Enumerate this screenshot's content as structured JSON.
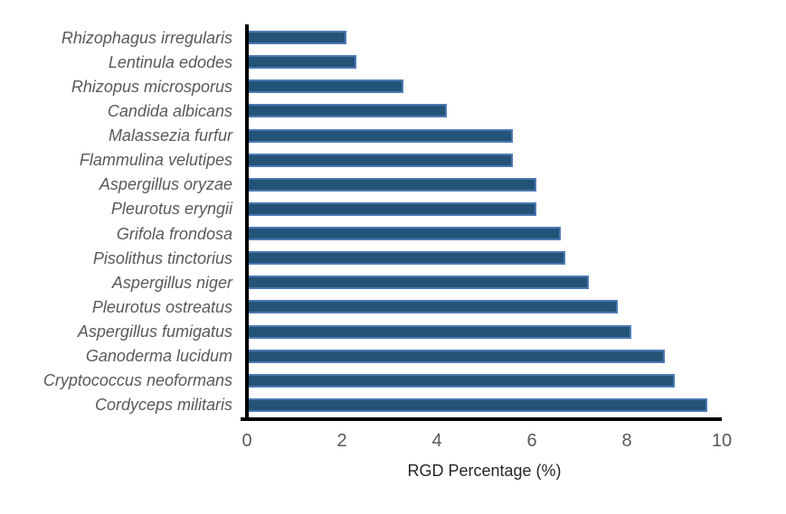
{
  "chart_data": {
    "type": "bar",
    "orientation": "horizontal",
    "title": "",
    "xlabel": "RGD Percentage (%)",
    "ylabel": "",
    "xlim": [
      0,
      10
    ],
    "xticks": [
      "0",
      "2",
      "4",
      "6",
      "8",
      "10"
    ],
    "grid": false,
    "legend": "none",
    "categories": [
      "Rhizophagus irregularis",
      "Lentinula edodes",
      "Rhizopus microsporus",
      "Candida albicans",
      "Malassezia furfur",
      "Flammulina velutipes",
      "Aspergillus oryzae",
      "Pleurotus eryngii",
      "Grifola frondosa",
      "Pisolithus tinctorius",
      "Aspergillus niger",
      "Pleurotus ostreatus",
      "Aspergillus fumigatus",
      "Ganoderma lucidum",
      "Cryptococcus neoformans",
      "Cordyceps militaris"
    ],
    "values": [
      2.1,
      2.3,
      3.3,
      4.2,
      5.6,
      5.6,
      6.1,
      6.1,
      6.6,
      6.7,
      7.2,
      7.8,
      8.1,
      8.8,
      9.0,
      9.7
    ],
    "category_style": "italic",
    "colors": {
      "bar_fill": "#235377",
      "bar_border": "#4C79B4",
      "axis_line": "#000000",
      "tick_label": "#595959",
      "category_label": "#595959",
      "axis_title": "#262626",
      "background": "#ffffff"
    }
  }
}
